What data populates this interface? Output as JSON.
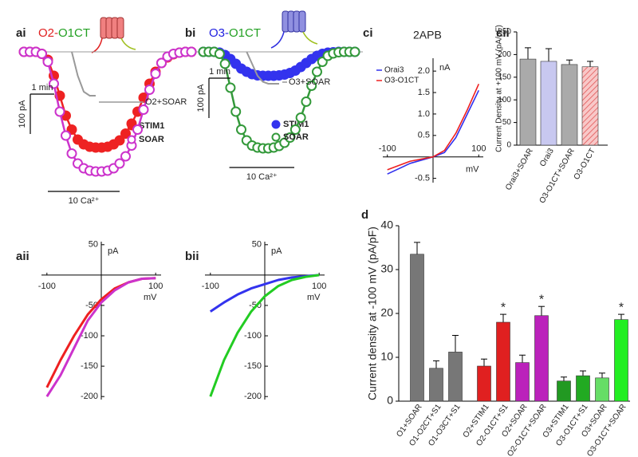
{
  "chart_data": [
    {
      "type": "trace",
      "panel": "ai",
      "title_parts": [
        {
          "text": "O2-",
          "color": "#e02020"
        },
        {
          "text": "O1CT",
          "color": "#22a022"
        }
      ],
      "x": [
        0,
        0.25,
        0.5,
        0.75,
        1,
        1.25,
        1.5,
        1.75,
        2,
        2.25,
        2.5,
        2.75,
        3,
        3.25,
        3.5,
        3.75,
        4,
        4.25,
        4.5,
        4.75,
        5,
        5.25,
        5.5,
        5.75,
        6,
        6.25,
        6.5,
        6.75,
        7
      ],
      "series": [
        {
          "name": "STIM1",
          "color": "#ee2222",
          "marker": "filled",
          "values": [
            0,
            0,
            0,
            -5,
            -20,
            -60,
            -110,
            -160,
            -195,
            -220,
            -232,
            -238,
            -240,
            -240,
            -238,
            -232,
            -222,
            -205,
            -180,
            -150,
            -115,
            -80,
            -50,
            -28,
            -14,
            -6,
            -2,
            0,
            0
          ]
        },
        {
          "name": "SOAR",
          "color": "#cc33cc",
          "marker": "open",
          "values": [
            0,
            0,
            0,
            -5,
            -25,
            -80,
            -150,
            -210,
            -255,
            -280,
            -292,
            -298,
            -300,
            -300,
            -298,
            -292,
            -280,
            -262,
            -235,
            -195,
            -145,
            -95,
            -55,
            -28,
            -12,
            -5,
            -2,
            0,
            0
          ]
        },
        {
          "name": "O2+SOAR",
          "color": "#999999",
          "marker": "none",
          "values": [
            null,
            null,
            null,
            null,
            null,
            null,
            null,
            null,
            0,
            -60,
            -100,
            -110,
            -110,
            null,
            null,
            null,
            null,
            null,
            null,
            null,
            null,
            null,
            null,
            null,
            null,
            null,
            null,
            null,
            null
          ]
        }
      ],
      "xlim": [
        0,
        7
      ],
      "ylim": [
        -310,
        10
      ],
      "scalebar_x": {
        "value": 1,
        "label": "1 min"
      },
      "scalebar_y": {
        "value": 100,
        "label": "100 pA"
      },
      "stimulus": {
        "label": "10 Ca²⁺",
        "x": [
          1,
          4
        ]
      }
    },
    {
      "type": "trace",
      "panel": "bi",
      "title_parts": [
        {
          "text": "O3-",
          "color": "#2020e0"
        },
        {
          "text": "O1CT",
          "color": "#22a022"
        }
      ],
      "x": [
        0,
        0.25,
        0.5,
        0.75,
        1,
        1.25,
        1.5,
        1.75,
        2,
        2.25,
        2.5,
        2.75,
        3,
        3.25,
        3.5,
        3.75,
        4,
        4.25,
        4.5,
        4.75,
        5,
        5.25,
        5.5,
        5.75,
        6,
        6.25,
        6.5,
        6.75,
        7
      ],
      "series": [
        {
          "name": "STIM1",
          "color": "#3333ee",
          "marker": "filled",
          "values": [
            0,
            0,
            0,
            -2,
            -8,
            -18,
            -30,
            -42,
            -50,
            -56,
            -59,
            -60,
            -60,
            -60,
            -59,
            -57,
            -53,
            -47,
            -38,
            -28,
            -18,
            -10,
            -5,
            -2,
            -1,
            0,
            0,
            0,
            0
          ]
        },
        {
          "name": "SOAR",
          "color": "#33993a",
          "marker": "open",
          "values": [
            0,
            0,
            0,
            -5,
            -30,
            -90,
            -150,
            -195,
            -222,
            -235,
            -240,
            -242,
            -242,
            -240,
            -236,
            -228,
            -215,
            -195,
            -165,
            -125,
            -85,
            -50,
            -25,
            -10,
            -4,
            -1,
            0,
            0,
            0
          ]
        },
        {
          "name": "O3+SOAR",
          "color": "#999999",
          "marker": "none",
          "values": [
            null,
            null,
            null,
            null,
            null,
            null,
            null,
            null,
            0,
            -30,
            -60,
            -75,
            -80,
            -80,
            -80,
            null,
            null,
            null,
            null,
            null,
            null,
            null,
            null,
            null,
            null,
            null,
            null,
            null,
            null
          ]
        }
      ],
      "xlim": [
        0,
        7
      ],
      "ylim": [
        -310,
        10
      ],
      "scalebar_x": {
        "value": 1,
        "label": "1 min"
      },
      "scalebar_y": {
        "value": 100,
        "label": "100 pA"
      },
      "stimulus": {
        "label": "10 Ca²⁺",
        "x": [
          1.2,
          4.2
        ]
      }
    },
    {
      "type": "iv",
      "panel": "ci",
      "title": "2APB",
      "x_label": "mV",
      "y_label": "nA",
      "x": [
        -100,
        -50,
        0,
        25,
        50,
        75,
        100
      ],
      "series": [
        {
          "name": "Orai3",
          "color": "#3030ee",
          "values": [
            -0.4,
            -0.15,
            0,
            0.1,
            0.45,
            1.0,
            1.55
          ]
        },
        {
          "name": "O3-O1CT",
          "color": "#ee2020",
          "values": [
            -0.3,
            -0.1,
            0,
            0.15,
            0.55,
            1.1,
            1.7
          ]
        }
      ],
      "xlim": [
        -110,
        110
      ],
      "ylim": [
        -0.6,
        2.3
      ],
      "xticks": [
        -100,
        100
      ],
      "yticks": [
        {
          "value": 2,
          "label": "2.0"
        },
        1.5,
        {
          "value": 1,
          "label": "1.0"
        },
        0.5,
        -0.5
      ]
    },
    {
      "type": "bar",
      "panel": "cii",
      "y_label": "Current Density  at +100 mV (pA/pF)",
      "categories": [
        "Orai3+SOAR",
        "Orai3",
        "O3-O1CT+SOAR",
        "O3-O1CT"
      ],
      "values": [
        190,
        185,
        178,
        173
      ],
      "errors": [
        25,
        28,
        10,
        12
      ],
      "colors": [
        "#aaaaaa",
        "#c8c8f0",
        "#aaaaaa",
        "#f4b8b8"
      ],
      "hatch": [
        false,
        false,
        false,
        true
      ],
      "label_colors": [
        "#222222",
        "#222222",
        "#222222",
        "#222222"
      ],
      "ylim": [
        0,
        250
      ],
      "yticks": [
        0,
        50,
        100,
        150,
        200,
        250
      ]
    },
    {
      "type": "iv",
      "panel": "aii",
      "x_label": "mV",
      "y_label": "pA",
      "x": [
        -100,
        -75,
        -50,
        -25,
        0,
        25,
        50,
        75,
        100
      ],
      "series": [
        {
          "color": "#ee2020",
          "values": [
            -185,
            -140,
            -100,
            -65,
            -40,
            -22,
            -12,
            -6,
            -5
          ]
        },
        {
          "color": "#cc33cc",
          "values": [
            -200,
            -165,
            -120,
            -75,
            -45,
            -25,
            -12,
            -6,
            -5
          ]
        }
      ],
      "xlim": [
        -110,
        110
      ],
      "ylim": [
        -205,
        55
      ],
      "xticks": [
        -100,
        100
      ],
      "yticks": [
        50,
        -50,
        -100,
        -150,
        -200
      ]
    },
    {
      "type": "iv",
      "panel": "bii",
      "x_label": "mV",
      "y_label": "pA",
      "x": [
        -100,
        -75,
        -50,
        -25,
        0,
        25,
        50,
        75,
        100
      ],
      "series": [
        {
          "color": "#3333ee",
          "values": [
            -60,
            -45,
            -32,
            -22,
            -15,
            -8,
            -4,
            -2,
            0
          ]
        },
        {
          "color": "#22cc22",
          "values": [
            -200,
            -140,
            -95,
            -60,
            -35,
            -18,
            -8,
            -3,
            0
          ]
        }
      ],
      "xlim": [
        -110,
        110
      ],
      "ylim": [
        -205,
        55
      ],
      "xticks": [
        -100,
        100
      ],
      "yticks": [
        50,
        -50,
        -100,
        -150,
        -200
      ]
    },
    {
      "type": "bar",
      "panel": "d",
      "y_label": "Current density at -100 mV (pA/pF)",
      "categories": [
        "O1+SOAR",
        "O1-O2CT+S1",
        "O1-O3CT+S1",
        "O2+STIM1",
        "O2-O1CT+S1",
        "O2+SOAR",
        "O2-O1CT+SOAR",
        "O3+STIM1",
        "O3-O1CT+S1",
        "O3+SOAR",
        "O3-O1CT+SOAR"
      ],
      "values": [
        33.5,
        7.5,
        11.2,
        8.0,
        18.0,
        8.8,
        19.5,
        4.6,
        5.8,
        5.3,
        18.6
      ],
      "errors": [
        2.7,
        1.7,
        3.8,
        1.6,
        1.8,
        1.7,
        2.1,
        0.9,
        1.1,
        1.1,
        1.2
      ],
      "colors": [
        "#777777",
        "#777777",
        "#777777",
        "#e02020",
        "#e02020",
        "#bb22bb",
        "#bb22bb",
        "#229922",
        "#22aa22",
        "#66dd66",
        "#22ee22"
      ],
      "hatch": [
        false,
        false,
        false,
        false,
        false,
        false,
        false,
        false,
        false,
        false,
        false
      ],
      "label_colors": [
        "#222222",
        "#222222",
        "#222222",
        "#e02020",
        "#e02020",
        "#bb22bb",
        "#bb22bb",
        "#22aa22",
        "#22aa22",
        "#22cc22",
        "#22cc22"
      ],
      "annotations": [
        {
          "text": "*",
          "index": 4
        },
        {
          "text": "*",
          "index": 6
        },
        {
          "text": "*",
          "index": 10
        }
      ],
      "ylim": [
        0,
        40
      ],
      "yticks": [
        0,
        10,
        20,
        30,
        40
      ]
    }
  ]
}
